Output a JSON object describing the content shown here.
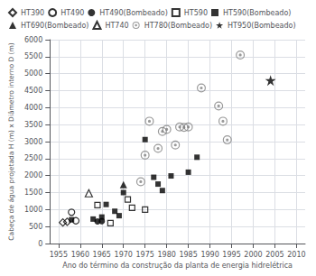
{
  "chart_data": {
    "type": "scatter",
    "xlabel": "Ano do término da construção da planta de energia hidrelétrica",
    "ylabel": "Cabeça de água projetada H (m) x Diâmetro interno D (m)",
    "xlim": [
      1953,
      2012
    ],
    "ylim": [
      0,
      6000
    ],
    "xticks": [
      1955,
      1960,
      1965,
      1970,
      1975,
      1980,
      1985,
      1990,
      1995,
      2000,
      2005,
      2010
    ],
    "yticks": [
      0,
      500,
      1000,
      1500,
      2000,
      2500,
      3000,
      3500,
      4000,
      4500,
      5000,
      5500,
      6000
    ],
    "grid": true,
    "legend": "upper left",
    "series": [
      {
        "name": "HT390",
        "marker": "open_diamond",
        "color": "black",
        "x": [
          1956,
          1957
        ],
        "y": [
          620,
          640
        ]
      },
      {
        "name": "HT490",
        "marker": "open_circle",
        "color": "black",
        "x": [
          1958,
          1959
        ],
        "y": [
          920,
          670
        ]
      },
      {
        "name": "HT490(Bombeado)",
        "marker": "circle",
        "color": "black",
        "x": [
          1964,
          1965
        ],
        "y": [
          650,
          660
        ]
      },
      {
        "name": "HT590",
        "marker": "open_square",
        "color": "black",
        "x": [
          1964,
          1967,
          1971,
          1972,
          1975
        ],
        "y": [
          1130,
          600,
          1300,
          1050,
          1000
        ]
      },
      {
        "name": "HT590(Bombeado)",
        "marker": "square",
        "color": "black",
        "x": [
          1958,
          1963,
          1965,
          1966,
          1968,
          1969,
          1970,
          1975,
          1977,
          1978,
          1979,
          1981,
          1985,
          1987
        ],
        "y": [
          700,
          720,
          780,
          1150,
          950,
          820,
          1500,
          3060,
          1950,
          1750,
          1560,
          1990,
          2100,
          2540
        ]
      },
      {
        "name": "HT690(Bombeado)",
        "marker": "triangle",
        "color": "black",
        "x": [
          1970
        ],
        "y": [
          1730
        ]
      },
      {
        "name": "HT740",
        "marker": "open_triangle",
        "color": "black",
        "x": [
          1962
        ],
        "y": [
          1480
        ]
      },
      {
        "name": "HT780(Bombeado)",
        "marker": "circled_dot",
        "color": "gray",
        "x": [
          1974,
          1975,
          1976,
          1978,
          1979,
          1980,
          1982,
          1983,
          1984,
          1985,
          1988,
          1992,
          1993,
          1994,
          1997
        ],
        "y": [
          1820,
          2600,
          3600,
          2800,
          3300,
          3360,
          2900,
          3430,
          3420,
          3430,
          4580,
          4050,
          3600,
          3050,
          5550
        ]
      },
      {
        "name": "HT950(Bombeado)",
        "marker": "star",
        "color": "black",
        "x": [
          2004
        ],
        "y": [
          4800
        ]
      }
    ]
  }
}
